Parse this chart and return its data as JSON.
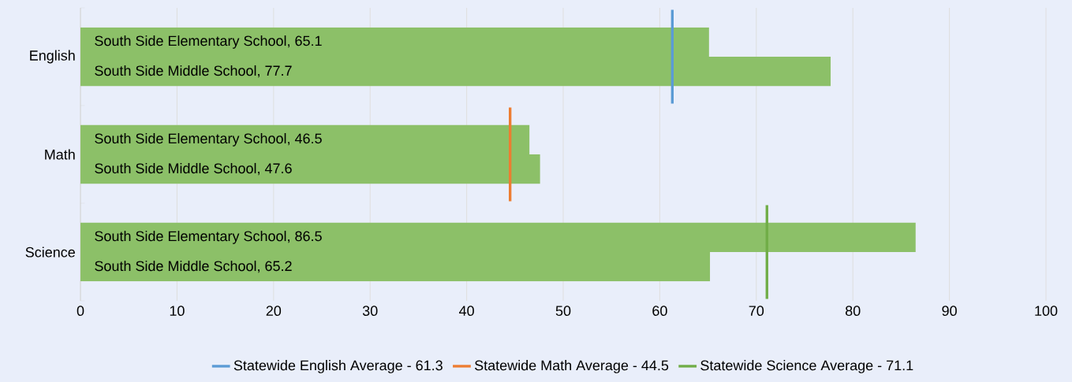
{
  "chart_data": {
    "type": "bar",
    "orientation": "horizontal",
    "categories": [
      "English",
      "Math",
      "Science"
    ],
    "series": [
      {
        "color": "#8cc068",
        "values": [
          65.1,
          46.5,
          86.5
        ],
        "value_labels": [
          "South Side Elementary School, 65.1",
          "South Side Elementary School, 46.5",
          "South Side Elementary School, 86.5"
        ]
      },
      {
        "color": "#8cc068",
        "values": [
          77.7,
          47.6,
          65.2
        ],
        "value_labels": [
          "South Side Middle School, 77.7",
          "South Side Middle School, 47.6",
          "South Side Middle School, 65.2"
        ]
      }
    ],
    "xlim": [
      0,
      100
    ],
    "xticks": [
      0,
      10,
      20,
      30,
      40,
      50,
      60,
      70,
      80,
      90,
      100
    ],
    "grid": "x",
    "legend": "bottom",
    "ref_lines": [
      {
        "axis": "x",
        "value": 61.3,
        "label": "Statewide English Average - 61.3",
        "color": "#5b9bd5"
      },
      {
        "axis": "x",
        "value": 44.5,
        "label": "Statewide Math Average - 44.5",
        "color": "#ed7d31"
      },
      {
        "axis": "x",
        "value": 71.1,
        "label": "Statewide Science Average - 71.1",
        "color": "#70ad47"
      }
    ]
  }
}
